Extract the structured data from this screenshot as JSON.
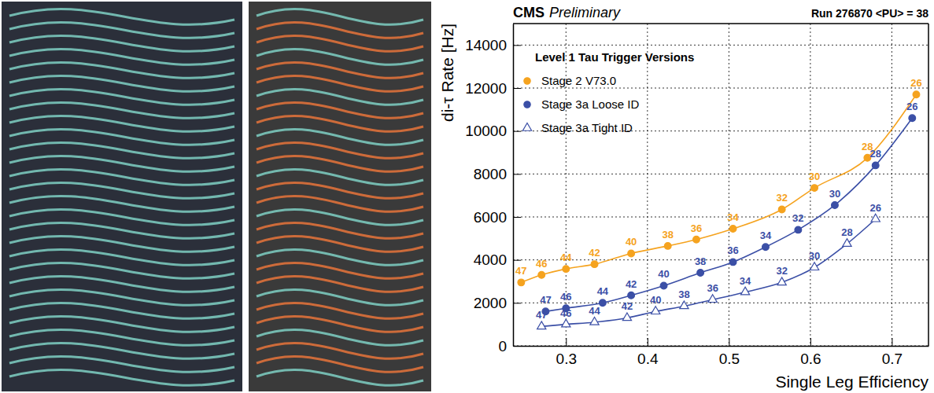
{
  "chart_data": {
    "type": "scatter",
    "title": "CMS",
    "subtitle": "Preliminary",
    "annotation": "Run 276870 <PU> = 38",
    "x_label": "Single Leg Efficiency",
    "y_label": "di-τ Rate [Hz]",
    "legend_title": "Level 1 Tau Trigger Versions",
    "legend": "upper left",
    "grid": true,
    "xlim": [
      0.235,
      0.745
    ],
    "xticks": [
      0.3,
      0.4,
      0.5,
      0.6,
      0.7
    ],
    "ylim": [
      0,
      15000
    ],
    "yticks": [
      0,
      2000,
      4000,
      6000,
      8000,
      10000,
      12000,
      14000
    ],
    "series": [
      {
        "name": "Stage 2 V73.0",
        "color": "#f5a31f",
        "marker": "circle",
        "line_style": "solid",
        "x": [
          0.245,
          0.27,
          0.3,
          0.335,
          0.38,
          0.425,
          0.46,
          0.505,
          0.565,
          0.605,
          0.67,
          0.73
        ],
        "values": [
          2950,
          3300,
          3580,
          3800,
          4300,
          4650,
          4950,
          5450,
          6350,
          7350,
          8750,
          11700
        ],
        "point_labels": [
          47,
          46,
          44,
          42,
          40,
          38,
          36,
          34,
          32,
          30,
          28,
          26
        ]
      },
      {
        "name": "Stage 3a Loose ID",
        "color": "#3b4fa6",
        "marker": "circle",
        "line_style": "solid",
        "x": [
          0.275,
          0.3,
          0.345,
          0.38,
          0.42,
          0.465,
          0.505,
          0.545,
          0.585,
          0.63,
          0.68,
          0.725
        ],
        "values": [
          1600,
          1750,
          2000,
          2350,
          2800,
          3400,
          3900,
          4600,
          5400,
          6550,
          8400,
          10600
        ],
        "point_labels": [
          47,
          46,
          44,
          42,
          40,
          38,
          36,
          34,
          32,
          30,
          28,
          26
        ]
      },
      {
        "name": "Stage 3a Tight ID",
        "color": "#3b4fa6",
        "marker": "triangle-open",
        "line_style": "solid",
        "x": [
          0.27,
          0.3,
          0.335,
          0.375,
          0.41,
          0.445,
          0.48,
          0.52,
          0.565,
          0.605,
          0.645,
          0.68
        ],
        "values": [
          900,
          1000,
          1100,
          1300,
          1600,
          1850,
          2150,
          2500,
          2950,
          3650,
          4750,
          5900
        ],
        "point_labels": [
          47,
          46,
          44,
          42,
          40,
          38,
          36,
          34,
          32,
          30,
          28,
          26
        ]
      }
    ]
  }
}
